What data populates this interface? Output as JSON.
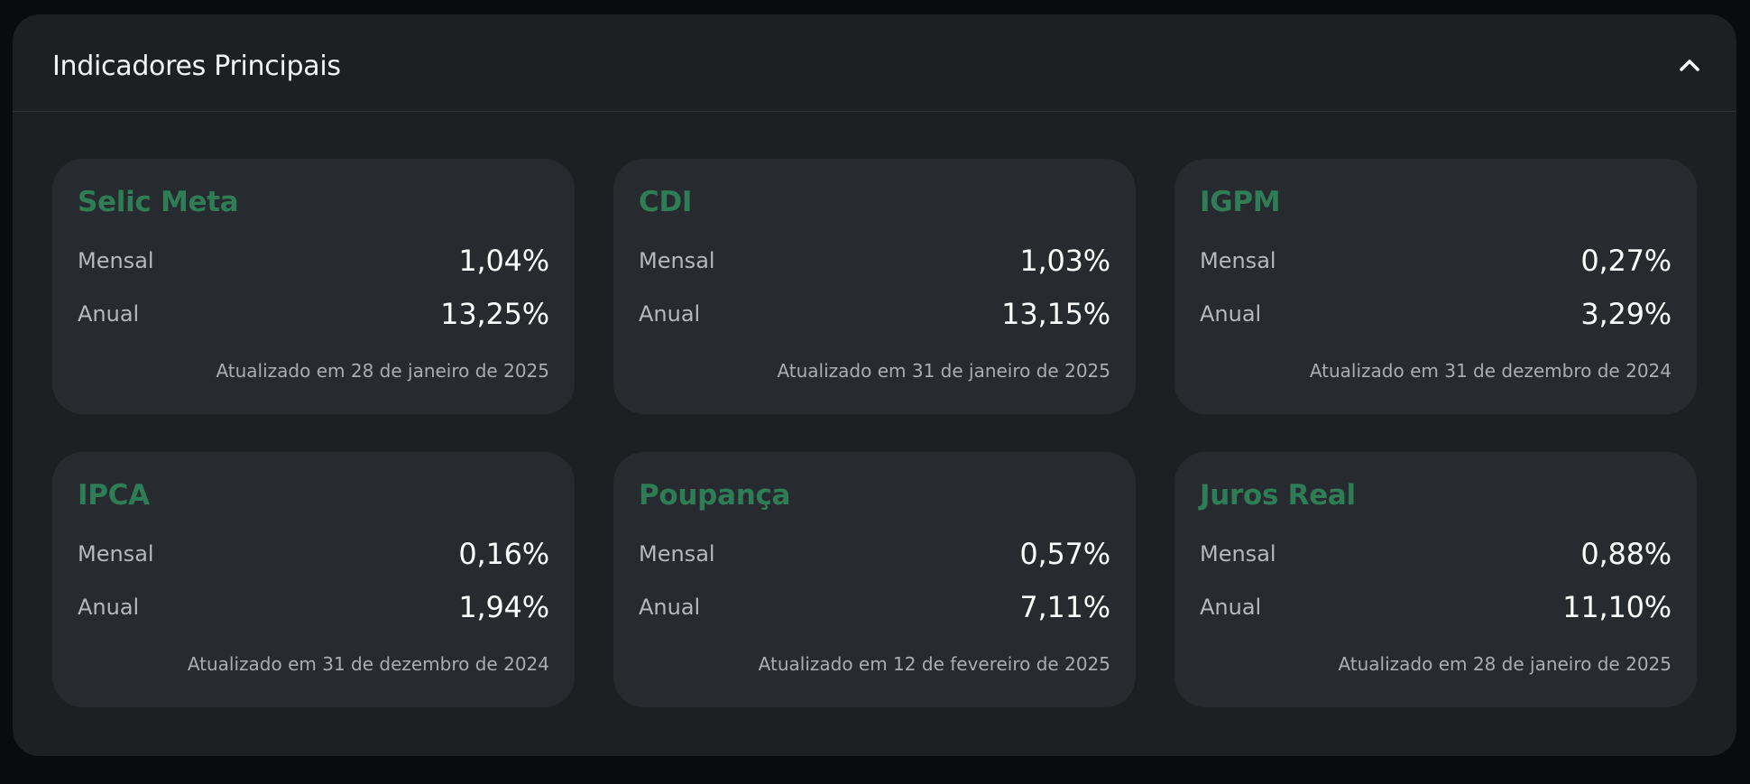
{
  "header": {
    "title": "Indicadores Principais",
    "collapse_icon": "chevron-up-icon"
  },
  "colors": {
    "accent": "#2f7d57",
    "panel_bg": "#1d2023",
    "card_bg": "#272a2e",
    "page_bg": "#090b0d"
  },
  "labels": {
    "monthly": "Mensal",
    "annual": "Anual"
  },
  "cards": [
    {
      "name": "Selic Meta",
      "monthly": "1,04%",
      "annual": "13,25%",
      "updated": "Atualizado em 28 de janeiro de 2025"
    },
    {
      "name": "CDI",
      "monthly": "1,03%",
      "annual": "13,15%",
      "updated": "Atualizado em 31 de janeiro de 2025"
    },
    {
      "name": "IGPM",
      "monthly": "0,27%",
      "annual": "3,29%",
      "updated": "Atualizado em 31 de dezembro de 2024"
    },
    {
      "name": "IPCA",
      "monthly": "0,16%",
      "annual": "1,94%",
      "updated": "Atualizado em 31 de dezembro de 2024"
    },
    {
      "name": "Poupança",
      "monthly": "0,57%",
      "annual": "7,11%",
      "updated": "Atualizado em 12 de fevereiro de 2025"
    },
    {
      "name": "Juros Real",
      "monthly": "0,88%",
      "annual": "11,10%",
      "updated": "Atualizado em 28 de janeiro de 2025"
    }
  ]
}
